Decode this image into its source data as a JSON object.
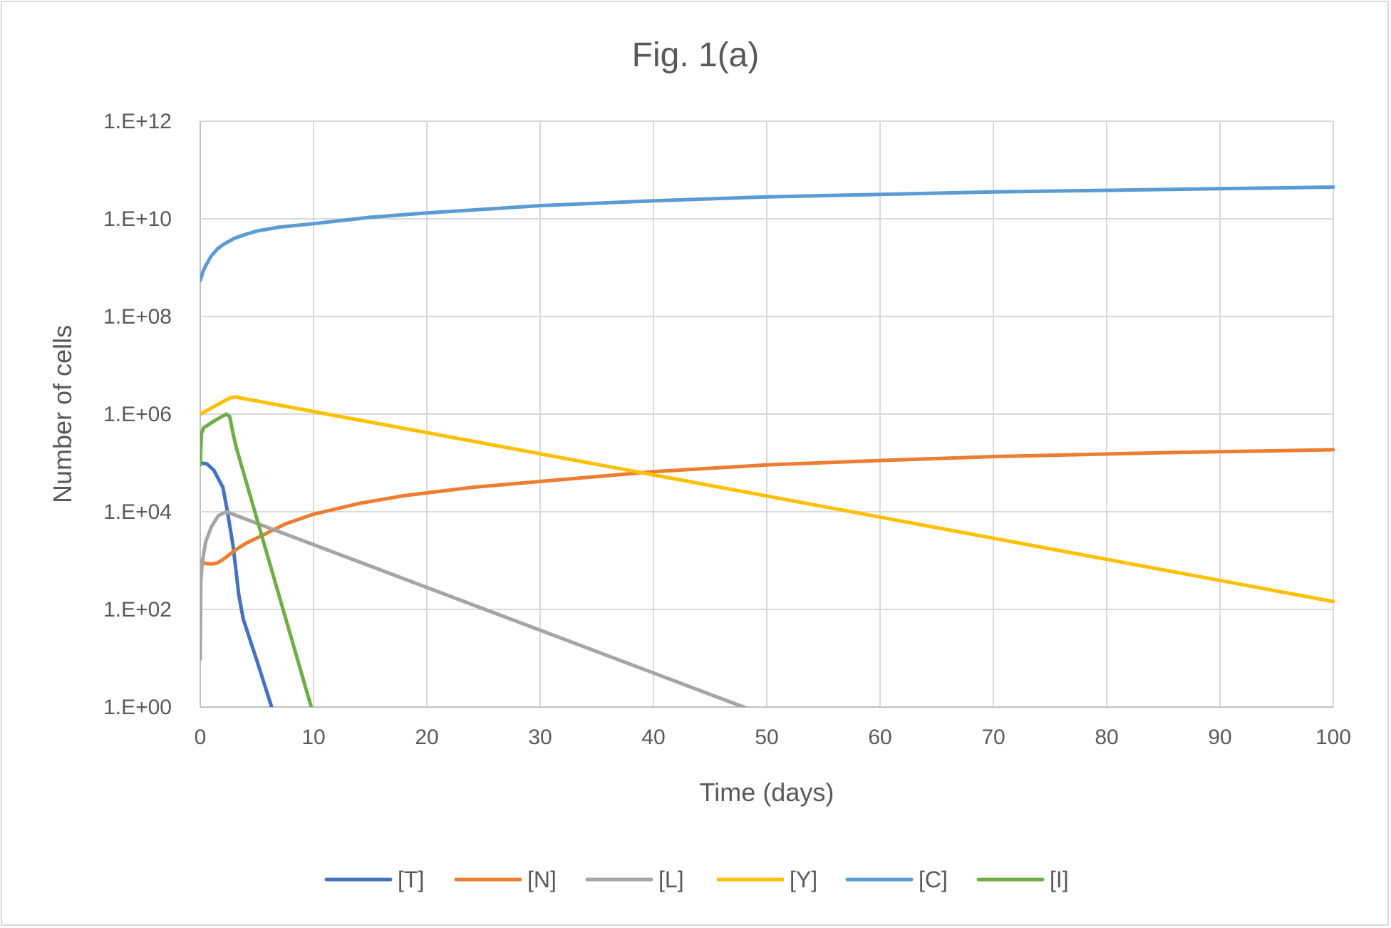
{
  "chart_data": {
    "type": "line",
    "title": "Fig. 1(a)",
    "xlabel": "Time (days)",
    "ylabel": "Number of cells",
    "xlim": [
      0,
      100
    ],
    "ylim": [
      1,
      1000000000000.0
    ],
    "yscale": "log",
    "x_ticks": [
      "0",
      "10",
      "20",
      "30",
      "40",
      "50",
      "60",
      "70",
      "80",
      "90",
      "100"
    ],
    "y_ticks": [
      "1.E+00",
      "1.E+02",
      "1.E+04",
      "1.E+06",
      "1.E+08",
      "1.E+10",
      "1.E+12"
    ],
    "grid": true,
    "legend_position": "bottom",
    "series": [
      {
        "name": "[T]",
        "color": "#4472C4",
        "points_log10": [
          [
            0,
            5
          ],
          [
            0.6,
            4.98
          ],
          [
            1.2,
            4.85
          ],
          [
            2,
            4.5
          ],
          [
            2.4,
            4
          ],
          [
            2.9,
            3.3
          ],
          [
            3.4,
            2.3
          ],
          [
            3.8,
            1.8
          ],
          [
            5,
            0.95
          ],
          [
            6.3,
            0
          ]
        ]
      },
      {
        "name": "[N]",
        "color": "#ED7D31",
        "points_log10": [
          [
            0,
            2.99
          ],
          [
            0.5,
            2.94
          ],
          [
            1,
            2.93
          ],
          [
            1.5,
            2.95
          ],
          [
            2,
            3.02
          ],
          [
            3,
            3.2
          ],
          [
            4,
            3.35
          ],
          [
            5.6,
            3.53
          ],
          [
            7.5,
            3.75
          ],
          [
            10,
            3.95
          ],
          [
            14,
            4.17
          ],
          [
            18,
            4.33
          ],
          [
            24,
            4.5
          ],
          [
            30,
            4.62
          ],
          [
            40,
            4.82
          ],
          [
            50,
            4.96
          ],
          [
            60,
            5.05
          ],
          [
            70,
            5.13
          ],
          [
            85,
            5.21
          ],
          [
            100,
            5.27
          ]
        ]
      },
      {
        "name": "[L]",
        "color": "#A5A5A5",
        "points_log10": [
          [
            0,
            0.98
          ],
          [
            0.05,
            2.6
          ],
          [
            0.2,
            3.0
          ],
          [
            0.5,
            3.4
          ],
          [
            1,
            3.7
          ],
          [
            1.6,
            3.92
          ],
          [
            2.3,
            4.0
          ],
          [
            48.2,
            -0.02
          ]
        ]
      },
      {
        "name": "[Y]",
        "color": "#FFC000",
        "points_log10": [
          [
            0,
            6.0
          ],
          [
            2.6,
            6.33
          ],
          [
            3.1,
            6.35
          ],
          [
            100,
            2.16
          ]
        ]
      },
      {
        "name": "[C]",
        "color": "#5B9BD5",
        "points_log10": [
          [
            0,
            8.74
          ],
          [
            0.25,
            8.92
          ],
          [
            0.5,
            9.05
          ],
          [
            1,
            9.25
          ],
          [
            1.5,
            9.38
          ],
          [
            2,
            9.47
          ],
          [
            3,
            9.6
          ],
          [
            4,
            9.68
          ],
          [
            5,
            9.75
          ],
          [
            7,
            9.83
          ],
          [
            10,
            9.9
          ],
          [
            15,
            10.03
          ],
          [
            20,
            10.12
          ],
          [
            30,
            10.27
          ],
          [
            40,
            10.37
          ],
          [
            50,
            10.45
          ],
          [
            60,
            10.5
          ],
          [
            70,
            10.55
          ],
          [
            85,
            10.6
          ],
          [
            100,
            10.65
          ]
        ]
      },
      {
        "name": "[I]",
        "color": "#70AD47",
        "points_log10": [
          [
            0,
            4.96
          ],
          [
            0.1,
            5.6
          ],
          [
            0.3,
            5.72
          ],
          [
            1.3,
            5.87
          ],
          [
            2.3,
            6.0
          ],
          [
            2.6,
            5.95
          ],
          [
            2.9,
            5.6
          ],
          [
            3.2,
            5.3
          ],
          [
            9.8,
            0
          ]
        ]
      }
    ]
  }
}
